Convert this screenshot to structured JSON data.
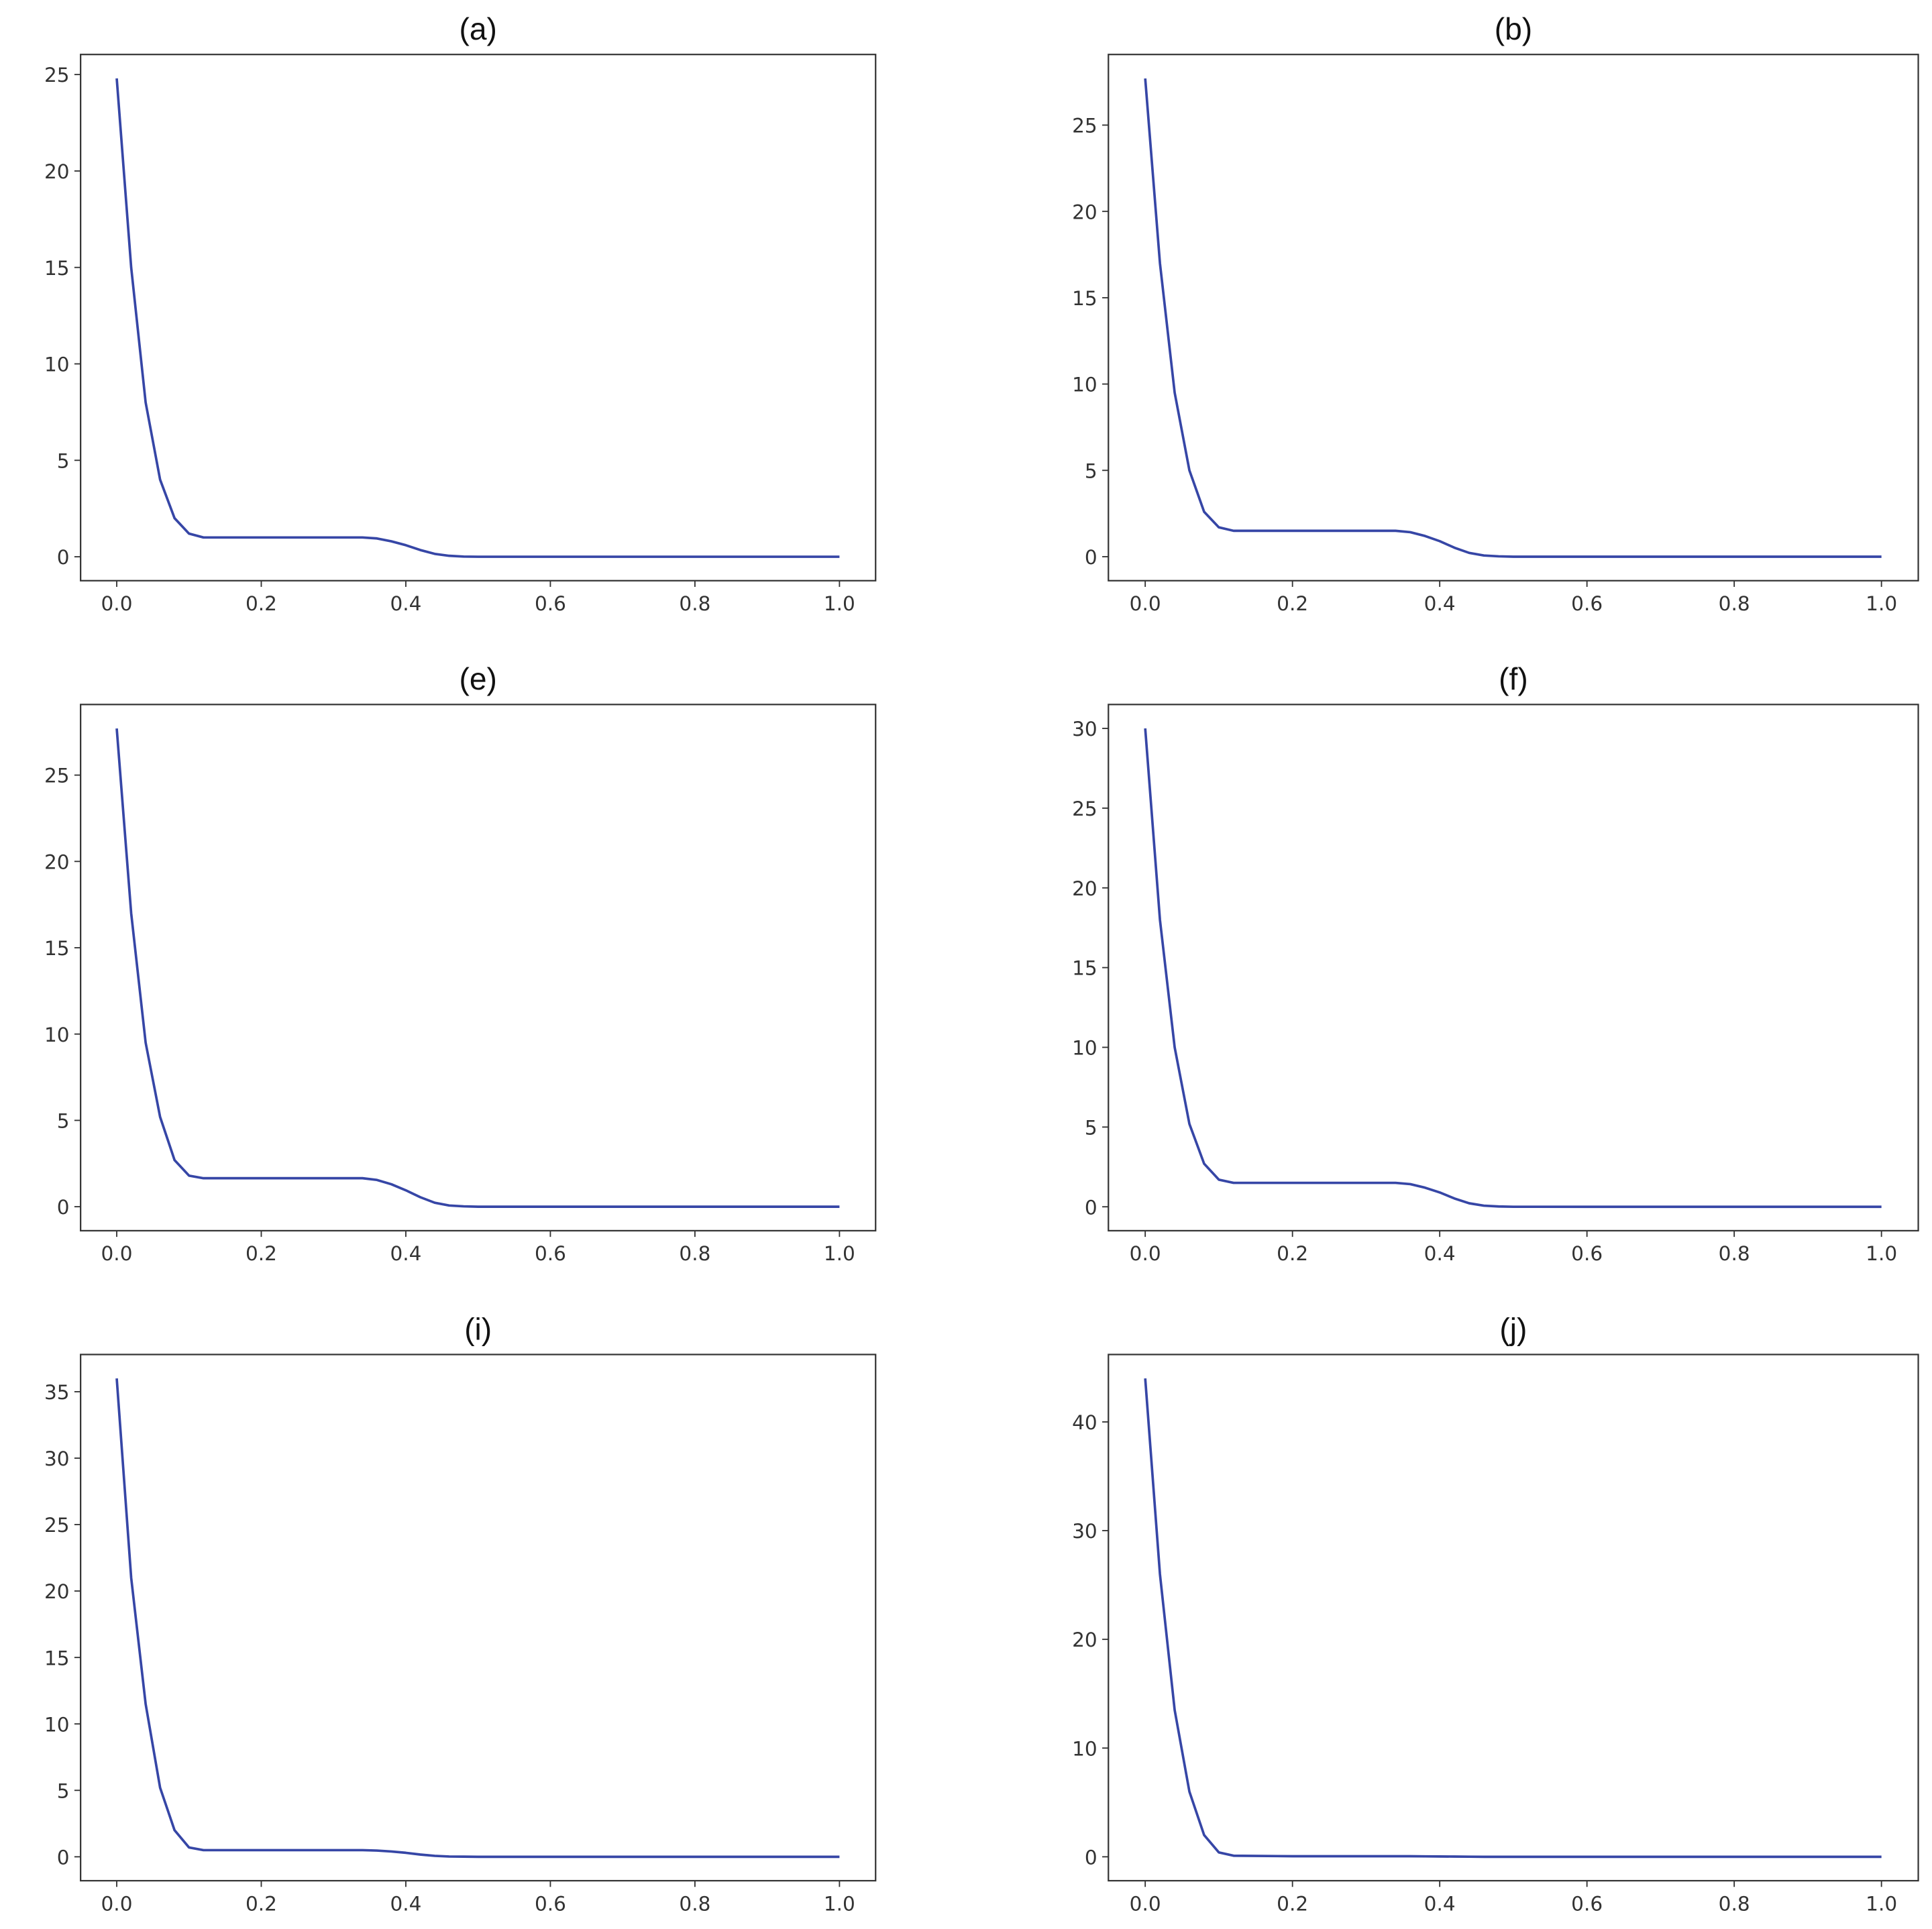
{
  "chart_data": [
    {
      "type": "line",
      "title": "(a)",
      "color": "#3646a6",
      "x": [
        0,
        0.02,
        0.04,
        0.06,
        0.08,
        0.1,
        0.12,
        0.2,
        0.3,
        0.34,
        0.36,
        0.38,
        0.4,
        0.42,
        0.44,
        0.46,
        0.48,
        0.5,
        0.6,
        0.8,
        1.0
      ],
      "values": [
        24.8,
        15,
        8,
        4,
        2,
        1.2,
        1.0,
        1.0,
        1.0,
        1.0,
        0.95,
        0.8,
        0.6,
        0.35,
        0.15,
        0.05,
        0.01,
        0,
        0,
        0,
        0
      ],
      "xlim": [
        -0.05,
        1.05
      ],
      "ylim": [
        -1.24,
        26.04
      ],
      "xticks": [
        {
          "value": 0,
          "label": "0.0"
        },
        {
          "value": 0.2,
          "label": "0.2"
        },
        {
          "value": 0.4,
          "label": "0.4"
        },
        {
          "value": 0.6,
          "label": "0.6"
        },
        {
          "value": 0.8,
          "label": "0.8"
        },
        {
          "value": 1.0,
          "label": "1.0"
        }
      ],
      "yticks": [
        0,
        5,
        10,
        15,
        20,
        25
      ]
    },
    {
      "type": "line",
      "title": "(b)",
      "color": "#3646a6",
      "x": [
        0,
        0.02,
        0.04,
        0.06,
        0.08,
        0.1,
        0.12,
        0.2,
        0.3,
        0.34,
        0.36,
        0.38,
        0.4,
        0.42,
        0.44,
        0.46,
        0.48,
        0.5,
        0.6,
        0.8,
        1.0
      ],
      "values": [
        27.7,
        17,
        9.5,
        5,
        2.6,
        1.7,
        1.5,
        1.5,
        1.5,
        1.5,
        1.42,
        1.2,
        0.9,
        0.52,
        0.22,
        0.07,
        0.02,
        0,
        0,
        0,
        0
      ],
      "xlim": [
        -0.05,
        1.05
      ],
      "ylim": [
        -1.39,
        29.09
      ],
      "xticks": [
        {
          "value": 0,
          "label": "0.0"
        },
        {
          "value": 0.2,
          "label": "0.2"
        },
        {
          "value": 0.4,
          "label": "0.4"
        },
        {
          "value": 0.6,
          "label": "0.6"
        },
        {
          "value": 0.8,
          "label": "0.8"
        },
        {
          "value": 1.0,
          "label": "1.0"
        }
      ],
      "yticks": [
        0,
        5,
        10,
        15,
        20,
        25
      ]
    },
    {
      "type": "line",
      "title": "(e)",
      "color": "#3646a6",
      "x": [
        0,
        0.02,
        0.04,
        0.06,
        0.08,
        0.1,
        0.12,
        0.2,
        0.3,
        0.34,
        0.36,
        0.38,
        0.4,
        0.42,
        0.44,
        0.46,
        0.48,
        0.5,
        0.6,
        0.8,
        1.0
      ],
      "values": [
        27.7,
        17,
        9.5,
        5.2,
        2.7,
        1.8,
        1.65,
        1.65,
        1.65,
        1.65,
        1.55,
        1.3,
        0.95,
        0.55,
        0.23,
        0.07,
        0.02,
        0,
        0,
        0,
        0
      ],
      "xlim": [
        -0.05,
        1.05
      ],
      "ylim": [
        -1.39,
        29.09
      ],
      "xticks": [
        {
          "value": 0,
          "label": "0.0"
        },
        {
          "value": 0.2,
          "label": "0.2"
        },
        {
          "value": 0.4,
          "label": "0.4"
        },
        {
          "value": 0.6,
          "label": "0.6"
        },
        {
          "value": 0.8,
          "label": "0.8"
        },
        {
          "value": 1.0,
          "label": "1.0"
        }
      ],
      "yticks": [
        0,
        5,
        10,
        15,
        20,
        25
      ]
    },
    {
      "type": "line",
      "title": "(f)",
      "color": "#3646a6",
      "x": [
        0,
        0.02,
        0.04,
        0.06,
        0.08,
        0.1,
        0.12,
        0.2,
        0.3,
        0.34,
        0.36,
        0.38,
        0.4,
        0.42,
        0.44,
        0.46,
        0.48,
        0.5,
        0.6,
        0.8,
        1.0
      ],
      "values": [
        30,
        18,
        10,
        5.2,
        2.7,
        1.7,
        1.5,
        1.5,
        1.5,
        1.5,
        1.42,
        1.2,
        0.9,
        0.52,
        0.22,
        0.07,
        0.02,
        0,
        0,
        0,
        0
      ],
      "xlim": [
        -0.05,
        1.05
      ],
      "ylim": [
        -1.5,
        31.5
      ],
      "xticks": [
        {
          "value": 0,
          "label": "0.0"
        },
        {
          "value": 0.2,
          "label": "0.2"
        },
        {
          "value": 0.4,
          "label": "0.4"
        },
        {
          "value": 0.6,
          "label": "0.6"
        },
        {
          "value": 0.8,
          "label": "0.8"
        },
        {
          "value": 1.0,
          "label": "1.0"
        }
      ],
      "yticks": [
        0,
        5,
        10,
        15,
        20,
        25,
        30
      ]
    },
    {
      "type": "line",
      "title": "(i)",
      "color": "#3646a6",
      "x": [
        0,
        0.02,
        0.04,
        0.06,
        0.08,
        0.1,
        0.12,
        0.2,
        0.3,
        0.34,
        0.36,
        0.38,
        0.4,
        0.42,
        0.44,
        0.46,
        0.48,
        0.5,
        0.6,
        0.8,
        1.0
      ],
      "values": [
        36,
        21,
        11.5,
        5.2,
        2,
        0.7,
        0.5,
        0.5,
        0.5,
        0.5,
        0.47,
        0.4,
        0.3,
        0.17,
        0.07,
        0.02,
        0.01,
        0,
        0,
        0,
        0
      ],
      "xlim": [
        -0.05,
        1.05
      ],
      "ylim": [
        -1.8,
        37.8
      ],
      "xticks": [
        {
          "value": 0,
          "label": "0.0"
        },
        {
          "value": 0.2,
          "label": "0.2"
        },
        {
          "value": 0.4,
          "label": "0.4"
        },
        {
          "value": 0.6,
          "label": "0.6"
        },
        {
          "value": 0.8,
          "label": "0.8"
        },
        {
          "value": 1.0,
          "label": "1.0"
        }
      ],
      "yticks": [
        0,
        5,
        10,
        15,
        20,
        25,
        30,
        35
      ]
    },
    {
      "type": "line",
      "title": "(j)",
      "color": "#3646a6",
      "x": [
        0,
        0.02,
        0.04,
        0.06,
        0.08,
        0.1,
        0.12,
        0.2,
        0.3,
        0.34,
        0.36,
        0.38,
        0.4,
        0.42,
        0.44,
        0.46,
        0.48,
        0.5,
        0.6,
        0.8,
        1.0
      ],
      "values": [
        44,
        26,
        13.5,
        6,
        2,
        0.4,
        0.1,
        0.05,
        0.05,
        0.05,
        0.05,
        0.04,
        0.03,
        0.02,
        0.01,
        0,
        0,
        0,
        0,
        0,
        0
      ],
      "xlim": [
        -0.05,
        1.05
      ],
      "ylim": [
        -2.2,
        46.2
      ],
      "xticks": [
        {
          "value": 0,
          "label": "0.0"
        },
        {
          "value": 0.2,
          "label": "0.2"
        },
        {
          "value": 0.4,
          "label": "0.4"
        },
        {
          "value": 0.6,
          "label": "0.6"
        },
        {
          "value": 0.8,
          "label": "0.8"
        },
        {
          "value": 1.0,
          "label": "1.0"
        }
      ],
      "yticks": [
        0,
        10,
        20,
        30,
        40
      ]
    }
  ]
}
